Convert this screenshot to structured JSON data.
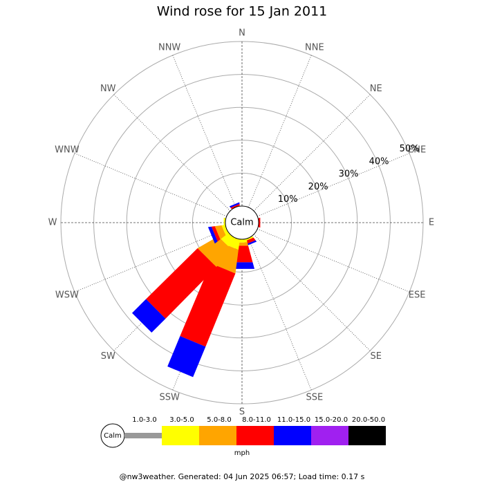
{
  "chart_data": {
    "type": "windrose",
    "title": "Wind rose for 15 Jan 2011",
    "calm_label": "Calm",
    "directions": [
      "N",
      "NNE",
      "NE",
      "ENE",
      "E",
      "ESE",
      "SE",
      "SSE",
      "S",
      "SSW",
      "SW",
      "WSW",
      "W",
      "WNW",
      "NW",
      "NNW"
    ],
    "rlim": [
      0,
      50
    ],
    "rticks": [
      {
        "value": 10,
        "label": "10%"
      },
      {
        "value": 20,
        "label": "20%"
      },
      {
        "value": 30,
        "label": "30%"
      },
      {
        "value": 40,
        "label": "40%"
      },
      {
        "value": 50,
        "label": "50%"
      }
    ],
    "series": [
      {
        "name": "1.0-3.0",
        "color": "#999999",
        "values": [
          0,
          0,
          0,
          0,
          0,
          0,
          0,
          0,
          0,
          0,
          0,
          0,
          0,
          0,
          0,
          0
        ]
      },
      {
        "name": "3.0-5.0",
        "color": "#ffff00",
        "values": [
          0,
          0,
          0,
          0,
          0,
          0,
          0,
          0.5,
          1,
          3,
          3,
          1,
          0.5,
          0,
          0,
          0
        ]
      },
      {
        "name": "5.0-8.0",
        "color": "#ffa500",
        "values": [
          0,
          0,
          0,
          0,
          0,
          0,
          0,
          0,
          1,
          7,
          7,
          2,
          0,
          0,
          0,
          0
        ]
      },
      {
        "name": "8.0-11.0",
        "color": "#ff0000",
        "values": [
          0,
          0,
          0,
          0,
          0.5,
          0,
          0,
          1,
          5,
          24,
          22,
          1,
          0,
          0,
          0,
          0.5
        ]
      },
      {
        "name": "11.0-15.0",
        "color": "#0000ff",
        "values": [
          0,
          0,
          0,
          0,
          0,
          0,
          0,
          0.5,
          2,
          10,
          6,
          1,
          0,
          0,
          0,
          0.5
        ]
      },
      {
        "name": "15.0-20.0",
        "color": "#a020f0",
        "values": [
          0,
          0,
          0,
          0,
          0,
          0,
          0,
          0,
          0,
          0,
          0,
          0,
          0,
          0,
          0,
          0
        ]
      },
      {
        "name": "20.0-50.0",
        "color": "#000000",
        "values": [
          0,
          0,
          0,
          0,
          0,
          0,
          0,
          0,
          0,
          0,
          0,
          0,
          0,
          0,
          0,
          0
        ]
      }
    ],
    "legend_title": "mph",
    "footer": "@nw3weather. Generated: 04 Jun 2025 06:57; Load time: 0.17 s"
  }
}
